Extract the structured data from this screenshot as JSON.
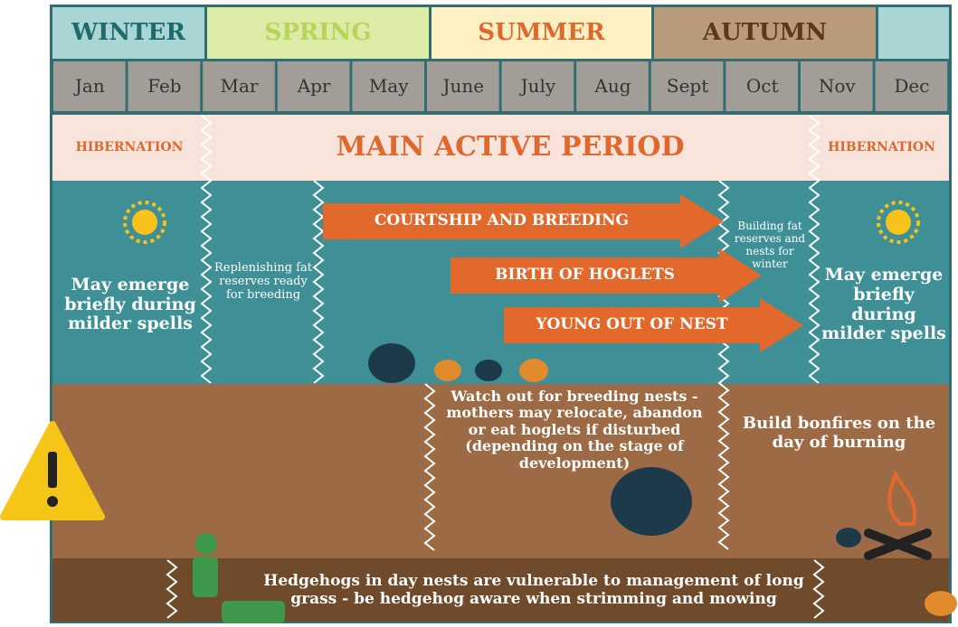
{
  "seasons": [
    "WINTER",
    "SPRING",
    "SUMMER",
    "AUTUMN"
  ],
  "months": [
    "Jan",
    "Feb",
    "Mar",
    "Apr",
    "May",
    "June",
    "July",
    "Aug",
    "Sept",
    "Oct",
    "Nov",
    "Dec"
  ],
  "periods": [
    "HIBERNATION",
    "MAIN ACTIVE PERIOD",
    "HIBERNATION"
  ],
  "activity": {
    "emerge_left": "May emerge briefly during milder spells",
    "replenishing": "Replenishing fat reserves ready for breeding",
    "arrows": [
      "COURTSHIP AND BREEDING",
      "BIRTH OF HOGLETS",
      "YOUNG OUT OF NEST"
    ],
    "building": "Building fat reserves and nests for winter",
    "emerge_right": "May emerge briefly during milder spells"
  },
  "warnings": {
    "nests": "Watch out for breeding nests - mothers may relocate, abandon or eat hoglets if disturbed (depending on the stage of development)",
    "bonfires": "Build bonfires on the day of burning"
  },
  "footer": "Hedgehogs in day nests are vulnerable to management of long grass - be hedgehog aware when strimming and mowing"
}
